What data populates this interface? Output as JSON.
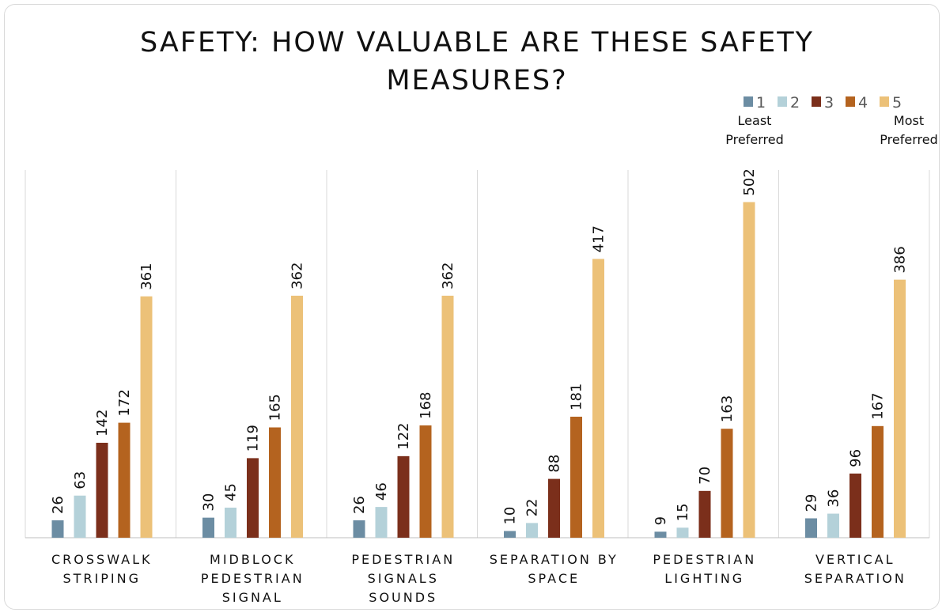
{
  "chart_data": {
    "type": "bar",
    "title": "SAFETY: HOW VALUABLE ARE THESE SAFETY MEASURES?",
    "categories": [
      [
        "CROSSWALK",
        "STRIPING"
      ],
      [
        "MIDBLOCK",
        "PEDESTRIAN",
        "SIGNAL"
      ],
      [
        "PEDESTRIAN",
        "SIGNALS",
        "SOUNDS"
      ],
      [
        "SEPARATION BY",
        "SPACE"
      ],
      [
        "PEDESTRIAN",
        "LIGHTING"
      ],
      [
        "VERTICAL",
        "SEPARATION"
      ]
    ],
    "series": [
      {
        "name": "1",
        "color": "#6c8da3",
        "values": [
          26,
          30,
          26,
          10,
          9,
          29
        ]
      },
      {
        "name": "2",
        "color": "#b4d1d9",
        "values": [
          63,
          45,
          46,
          22,
          15,
          36
        ]
      },
      {
        "name": "3",
        "color": "#7b2f1b",
        "values": [
          142,
          119,
          122,
          88,
          70,
          96
        ]
      },
      {
        "name": "4",
        "color": "#b4631f",
        "values": [
          172,
          165,
          168,
          181,
          163,
          167
        ]
      },
      {
        "name": "5",
        "color": "#ecc178",
        "values": [
          361,
          362,
          362,
          417,
          502,
          386
        ]
      }
    ],
    "annotations": [
      [
        "Least",
        "Preferred"
      ],
      [
        "Most",
        "Preferred"
      ]
    ],
    "ylim": [
      0,
      550
    ],
    "legend": "top-right"
  }
}
